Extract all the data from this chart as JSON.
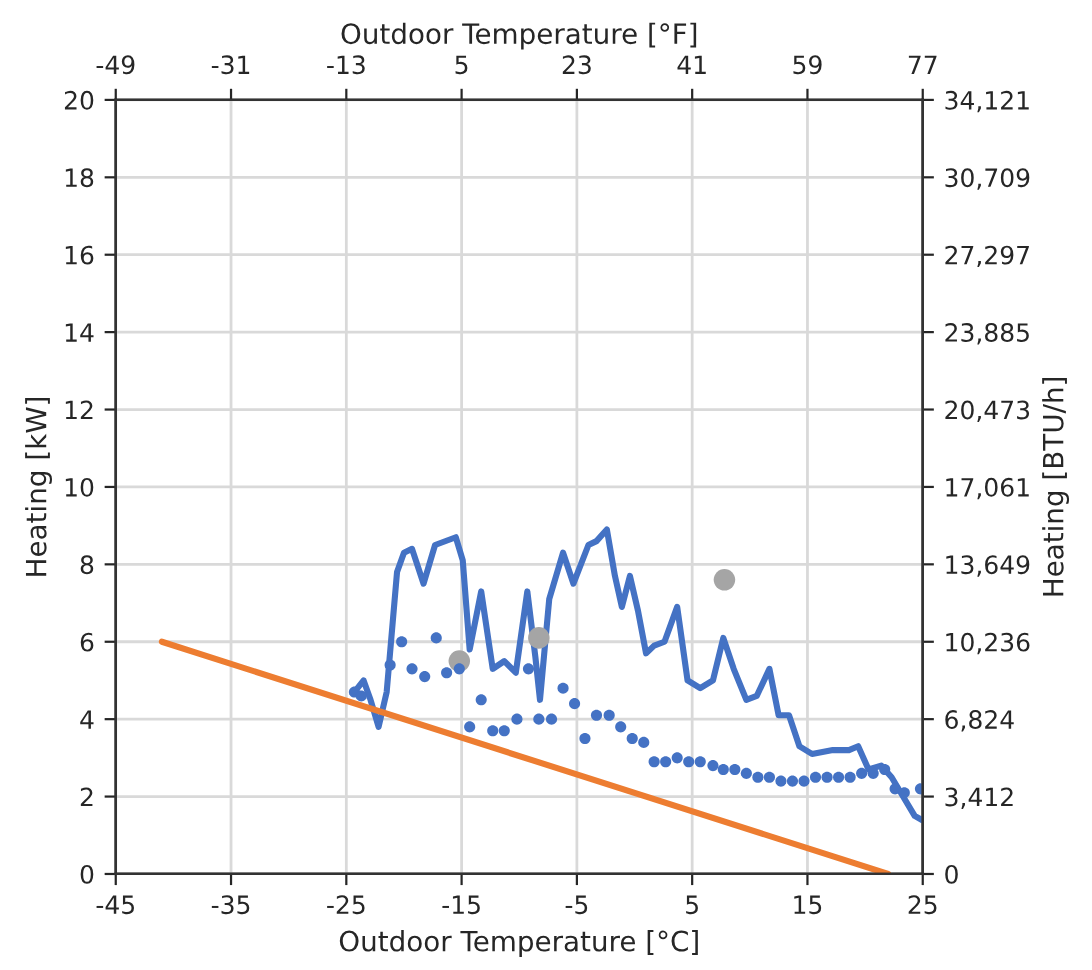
{
  "chart_data": {
    "type": "line",
    "xlabel": "Outdoor Temperature [°C]",
    "ylabel": "Heating [kW]",
    "x2label": "Outdoor Temperature [°F]",
    "y2label": "Heating [BTU/h]",
    "xlim": [
      -45,
      25
    ],
    "xticks": [
      -45,
      -35,
      -25,
      -15,
      -5,
      5,
      15,
      25
    ],
    "ylim": [
      0,
      20
    ],
    "yticks": [
      0,
      2,
      4,
      6,
      8,
      10,
      12,
      14,
      16,
      18,
      20
    ],
    "x2lim": [
      -49,
      77
    ],
    "x2ticks": [
      -49,
      -31,
      -13,
      5,
      23,
      41,
      59,
      77
    ],
    "y2lim": [
      0,
      34121
    ],
    "y2ticks": [
      0,
      {
        "value": 3412,
        "label": "3,412"
      },
      {
        "value": 6824,
        "label": "6,824"
      },
      {
        "value": 10236,
        "label": "10,236"
      },
      {
        "value": 13649,
        "label": "13,649"
      },
      {
        "value": 17061,
        "label": "17,061"
      },
      {
        "value": 20473,
        "label": "20,473"
      },
      {
        "value": 23885,
        "label": "23,885"
      },
      {
        "value": 27297,
        "label": "27,297"
      },
      {
        "value": 30709,
        "label": "30,709"
      },
      {
        "value": 34121,
        "label": "34,121"
      }
    ],
    "grid": true,
    "legend": false,
    "series": [
      {
        "color": "#4472c4",
        "x": [
          -24.3,
          -23.5,
          -22.9,
          -22.2,
          -21.5,
          -20.6,
          -20.0,
          -19.3,
          -18.3,
          -17.3,
          -15.5,
          -14.9,
          -14.3,
          -13.3,
          -12.3,
          -11.3,
          -10.3,
          -9.3,
          -8.6,
          -8.2,
          -7.4,
          -6.2,
          -5.3,
          -4.0,
          -3.3,
          -2.4,
          -1.7,
          -1.1,
          -0.4,
          0.3,
          1.0,
          1.7,
          2.6,
          3.7,
          4.6,
          5.7,
          6.8,
          7.7,
          8.6,
          9.7,
          10.6,
          11.7,
          12.5,
          13.4,
          14.3,
          15.4,
          17.2,
          18.6,
          19.4,
          20.3,
          21.4,
          22.3,
          23.1,
          24.3,
          24.9
        ],
        "values": [
          4.7,
          5.0,
          4.5,
          3.8,
          4.7,
          7.8,
          8.3,
          8.4,
          7.5,
          8.5,
          8.7,
          8.1,
          5.8,
          7.3,
          5.3,
          5.5,
          5.2,
          7.3,
          5.6,
          4.5,
          7.1,
          8.3,
          7.5,
          8.5,
          8.6,
          8.9,
          7.7,
          6.9,
          7.7,
          6.8,
          5.7,
          5.9,
          6.0,
          6.9,
          5.0,
          4.8,
          5.0,
          6.1,
          5.3,
          4.5,
          4.6,
          5.3,
          4.1,
          4.1,
          3.3,
          3.1,
          3.2,
          3.2,
          3.3,
          2.7,
          2.8,
          2.5,
          2.1,
          1.5,
          1.4
        ]
      },
      {
        "type": "scatter",
        "marker": "circle",
        "color": "#4472c4",
        "x": [
          -24.3,
          -23.7,
          -21.2,
          -20.2,
          -19.3,
          -18.2,
          -17.2,
          -16.3,
          -15.2,
          -14.3,
          -13.3,
          -12.3,
          -11.3,
          -10.2,
          -9.2,
          -8.3,
          -7.2,
          -6.2,
          -5.2,
          -4.3,
          -3.3,
          -2.2,
          -1.2,
          -0.2,
          0.8,
          1.7,
          2.7,
          3.7,
          4.7,
          5.7,
          6.8,
          7.7,
          8.7,
          9.7,
          10.7,
          11.7,
          12.7,
          13.7,
          14.7,
          15.7,
          16.7,
          17.7,
          18.7,
          19.7,
          20.7,
          21.7,
          22.6,
          23.4,
          24.8
        ],
        "values": [
          4.7,
          4.6,
          5.4,
          6.0,
          5.3,
          5.1,
          6.1,
          5.2,
          5.3,
          3.8,
          4.5,
          3.7,
          3.7,
          4.0,
          5.3,
          4.0,
          4.0,
          4.8,
          4.4,
          3.5,
          4.1,
          4.1,
          3.8,
          3.5,
          3.4,
          2.9,
          2.9,
          3.0,
          2.9,
          2.9,
          2.8,
          2.7,
          2.7,
          2.6,
          2.5,
          2.5,
          2.4,
          2.4,
          2.4,
          2.5,
          2.5,
          2.5,
          2.5,
          2.6,
          2.6,
          2.7,
          2.2,
          2.1,
          2.2
        ]
      },
      {
        "type": "scatter",
        "marker": "circle",
        "color": "#a5a5a5",
        "x": [
          -15.2,
          -8.3,
          7.8
        ],
        "values": [
          5.5,
          6.1,
          7.6
        ]
      },
      {
        "color": "#ed7d31",
        "x": [
          -41,
          22
        ],
        "values": [
          6.0,
          0.0
        ]
      }
    ]
  }
}
